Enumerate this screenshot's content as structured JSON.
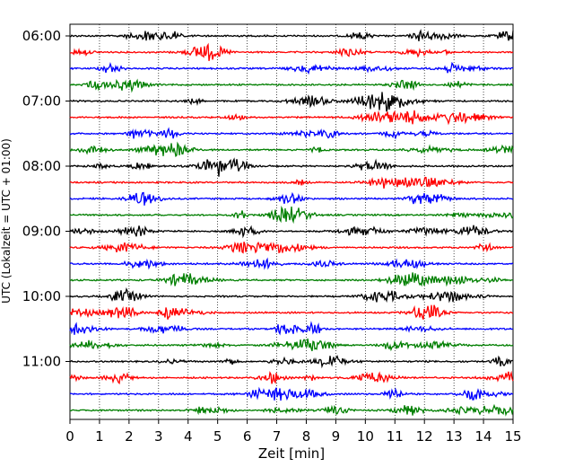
{
  "chart_data": {
    "type": "line",
    "title": "",
    "xlabel": "Zeit  [min]",
    "ylabel": "UTC (Lokalzeit = UTC + 01:00)",
    "xlim": [
      0,
      15
    ],
    "x_ticks": [
      "0",
      "1",
      "2",
      "3",
      "4",
      "5",
      "6",
      "7",
      "8",
      "9",
      "10",
      "11",
      "12",
      "13",
      "14",
      "15"
    ],
    "y_ticks": [
      "06:00",
      "07:00",
      "08:00",
      "09:00",
      "10:00",
      "11:00"
    ],
    "grid": "vertical dotted lines at each minute",
    "trace_start": "06:00",
    "trace_interval_minutes": 15,
    "trace_count": 24,
    "trace_colors": [
      "#000000",
      "#ff0000",
      "#0000ff",
      "#007f00"
    ],
    "series_note": "helicorder seismogram; each row is a 15-minute trace, colors cycle per row"
  }
}
